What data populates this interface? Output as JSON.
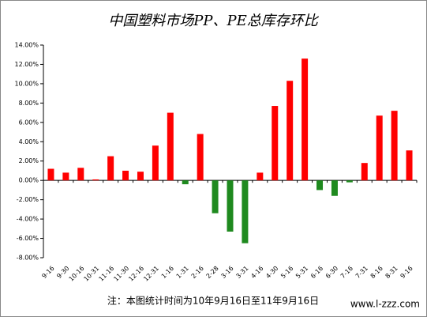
{
  "chart_data": {
    "type": "bar",
    "title": "中国塑料市场PP、PE总库存环比",
    "note": "注：本图统计时间为10年9月16日至11年9月16日",
    "watermark": "www.l-zzz.com",
    "categories": [
      "9-16",
      "9-30",
      "10-16",
      "10-31",
      "11-16",
      "11-30",
      "12-16",
      "12-31",
      "1-16",
      "1-31",
      "2-16",
      "2-28",
      "3-16",
      "3-31",
      "4-16",
      "4-30",
      "5-16",
      "5-31",
      "6-16",
      "6-30",
      "7-16",
      "7-31",
      "8-16",
      "8-31",
      "9-16"
    ],
    "values": [
      1.2,
      0.8,
      1.3,
      0.1,
      2.5,
      1.0,
      0.9,
      3.6,
      7.0,
      -0.4,
      4.8,
      -3.4,
      -5.3,
      -6.5,
      0.8,
      7.7,
      10.3,
      12.6,
      -1.0,
      -1.6,
      -0.2,
      1.8,
      6.7,
      7.2,
      3.1
    ],
    "colors": {
      "positive": "#ff0000",
      "negative": "#1f8a1f"
    },
    "ylim": [
      -8,
      14
    ],
    "yticks": [
      {
        "value": -8,
        "label": "-8.00%"
      },
      {
        "value": -6,
        "label": "-6.00%"
      },
      {
        "value": -4,
        "label": "-4.00%"
      },
      {
        "value": -2,
        "label": "-2.00%"
      },
      {
        "value": 0,
        "label": "0.00%"
      },
      {
        "value": 2,
        "label": "2.00%"
      },
      {
        "value": 4,
        "label": "4.00%"
      },
      {
        "value": 6,
        "label": "6.00%"
      },
      {
        "value": 8,
        "label": "8.00%"
      },
      {
        "value": 10,
        "label": "10.00%"
      },
      {
        "value": 12,
        "label": "12.00%"
      },
      {
        "value": 14,
        "label": "14.00%"
      }
    ]
  }
}
